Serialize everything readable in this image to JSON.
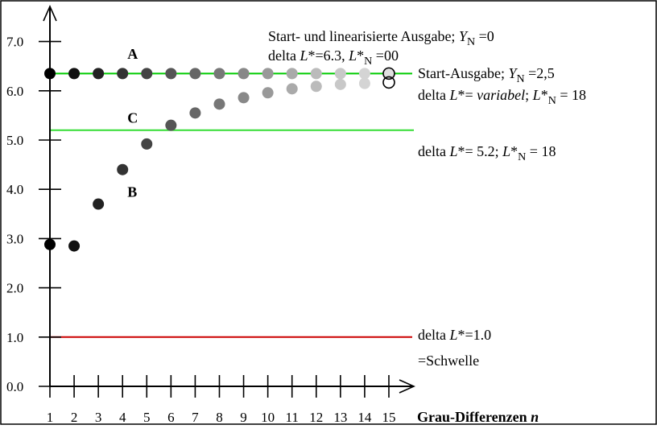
{
  "chart_data": {
    "type": "scatter",
    "xlabel_parts": [
      {
        "text": "Grau-Differenzen ",
        "italic": false
      },
      {
        "text": "n",
        "italic": true
      }
    ],
    "x_ticks": [
      1,
      2,
      3,
      4,
      5,
      6,
      7,
      8,
      9,
      10,
      11,
      12,
      13,
      14,
      15
    ],
    "y_ticks": [
      "0.0",
      "1.0",
      "2.0",
      "3.0",
      "4.0",
      "5.0",
      "6.0",
      "7.0"
    ],
    "xlim": [
      1,
      15
    ],
    "ylim": [
      0,
      7.8
    ],
    "series": [
      {
        "name": "A",
        "x": [
          1,
          2,
          3,
          4,
          5,
          6,
          7,
          8,
          9,
          10,
          11,
          12,
          13,
          14,
          15
        ],
        "y": [
          6.35,
          6.35,
          6.35,
          6.35,
          6.35,
          6.35,
          6.35,
          6.35,
          6.35,
          6.35,
          6.35,
          6.35,
          6.35,
          6.35,
          6.35
        ],
        "colors": [
          "#000000",
          "#111111",
          "#222222",
          "#333333",
          "#444444",
          "#555555",
          "#666666",
          "#777777",
          "#888888",
          "#999999",
          "#aaaaaa",
          "#bbbbbb",
          "#c8c8c8",
          "#d4d4d4",
          "#e0e0e0"
        ]
      },
      {
        "name": "B",
        "x": [
          1,
          2,
          3,
          4,
          5,
          6,
          7,
          8,
          9,
          10,
          11,
          12,
          13,
          14
        ],
        "y": [
          2.88,
          2.85,
          3.7,
          4.4,
          4.92,
          5.3,
          5.55,
          5.73,
          5.86,
          5.96,
          6.04,
          6.09,
          6.13,
          6.15
        ],
        "colors": [
          "#000000",
          "#111111",
          "#222222",
          "#333333",
          "#444444",
          "#555555",
          "#666666",
          "#777777",
          "#888888",
          "#999999",
          "#aaaaaa",
          "#bbbbbb",
          "#c8c8c8",
          "#d4d4d4"
        ]
      }
    ],
    "open_circles": [
      {
        "x": 15,
        "y": 6.35
      },
      {
        "x": 15,
        "y": 6.17
      }
    ],
    "hlines": [
      {
        "label": "A",
        "y": 6.35,
        "color": "#00cc00"
      },
      {
        "label": "C",
        "y": 5.2,
        "color": "#33dd33"
      },
      {
        "label": "threshold",
        "y": 1.0,
        "color": "#cc0000"
      }
    ],
    "series_letters": [
      {
        "text": "A",
        "x": 4.2,
        "y": 6.75
      },
      {
        "text": "C",
        "x": 4.2,
        "y": 5.45
      },
      {
        "text": "B",
        "x": 4.2,
        "y": 3.95
      }
    ],
    "annotations": [
      {
        "parts": [
          {
            "text": "Start- und linearisierte Ausgabe; ",
            "style": "normal"
          },
          {
            "text": "Y",
            "style": "italic"
          },
          {
            "text": "N",
            "style": "sub"
          },
          {
            "text": " =0",
            "style": "normal"
          }
        ]
      },
      {
        "parts": [
          {
            "text": "delta ",
            "style": "normal"
          },
          {
            "text": "L",
            "style": "italic"
          },
          {
            "text": "*=6.3, ",
            "style": "normal"
          },
          {
            "text": "L",
            "style": "italic"
          },
          {
            "text": "*",
            "style": "normal"
          },
          {
            "text": "N",
            "style": "sub"
          },
          {
            "text": " =00",
            "style": "normal"
          }
        ]
      },
      {
        "parts": [
          {
            "text": "Start-Ausgabe; ",
            "style": "normal"
          },
          {
            "text": "Y",
            "style": "italic"
          },
          {
            "text": "N",
            "style": "sub"
          },
          {
            "text": " =2,5",
            "style": "normal"
          }
        ]
      },
      {
        "parts": [
          {
            "text": "delta ",
            "style": "normal"
          },
          {
            "text": "L",
            "style": "italic"
          },
          {
            "text": "*= ",
            "style": "normal"
          },
          {
            "text": "variabel",
            "style": "italic"
          },
          {
            "text": "; ",
            "style": "normal"
          },
          {
            "text": "L",
            "style": "italic"
          },
          {
            "text": "*",
            "style": "normal"
          },
          {
            "text": "N",
            "style": "sub"
          },
          {
            "text": " = 18",
            "style": "normal"
          }
        ]
      },
      {
        "parts": [
          {
            "text": "delta ",
            "style": "normal"
          },
          {
            "text": "L",
            "style": "italic"
          },
          {
            "text": "*= 5.2; ",
            "style": "normal"
          },
          {
            "text": "L",
            "style": "italic"
          },
          {
            "text": "*",
            "style": "normal"
          },
          {
            "text": "N",
            "style": "sub"
          },
          {
            "text": " = 18",
            "style": "normal"
          }
        ]
      },
      {
        "parts": [
          {
            "text": "delta ",
            "style": "normal"
          },
          {
            "text": "L",
            "style": "italic"
          },
          {
            "text": "*=1.0",
            "style": "normal"
          }
        ]
      },
      {
        "parts": [
          {
            "text": "=Schwelle",
            "style": "normal"
          }
        ]
      }
    ],
    "grid": false,
    "legend": "none"
  }
}
